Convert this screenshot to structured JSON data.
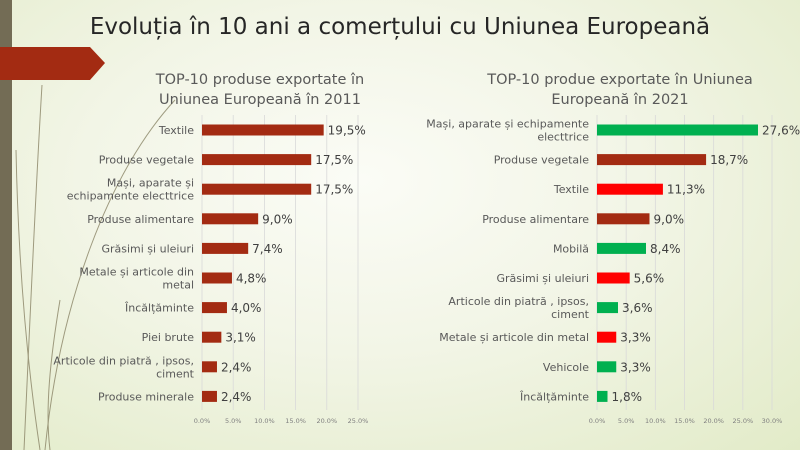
{
  "title": "Evoluția în 10 ani a comerțului cu Uniunea Europeană",
  "colors": {
    "dark_red": "#a32b12",
    "red": "#ff0000",
    "green": "#00b050",
    "sidebar": "#736c55"
  },
  "chart_data": [
    {
      "type": "bar",
      "orientation": "horizontal",
      "title": "TOP-10 produse exportate în Uniunea Europeană în 2011",
      "title_lines": [
        "TOP-10 produse exportate în",
        "Uniunea Europeană în 2011"
      ],
      "categories": [
        [
          "Textile"
        ],
        [
          "Produse vegetale"
        ],
        [
          "Mași, aparate și",
          "echipamente electtrice"
        ],
        [
          "Produse alimentare"
        ],
        [
          "Grăsimi și uleiuri"
        ],
        [
          "Metale și articole din",
          "metal"
        ],
        [
          "Încălțăminte"
        ],
        [
          "Piei brute"
        ],
        [
          "Articole din piatră , ipsos,",
          "ciment"
        ],
        [
          "Produse minerale"
        ]
      ],
      "values": [
        19.5,
        17.5,
        17.5,
        9.0,
        7.4,
        4.8,
        4.0,
        3.1,
        2.4,
        2.4
      ],
      "data_labels": [
        "19,5%",
        "17,5%",
        "17,5%",
        "9,0%",
        "7,4%",
        "4,8%",
        "4,0%",
        "3,1%",
        "2,4%",
        "2,4%"
      ],
      "bar_colors": [
        "dark_red",
        "dark_red",
        "dark_red",
        "dark_red",
        "dark_red",
        "dark_red",
        "dark_red",
        "dark_red",
        "dark_red",
        "dark_red"
      ],
      "xlim": [
        0,
        25
      ],
      "xticks": [
        "0.0%",
        "5.0%",
        "10.0%",
        "15.0%",
        "20.0%",
        "25.0%"
      ],
      "grid": true
    },
    {
      "type": "bar",
      "orientation": "horizontal",
      "title": "TOP-10 produe exportate în Uniunea Europeană în 2021",
      "title_lines": [
        "TOP-10 produe exportate în Uniunea",
        "Europeană în 2021"
      ],
      "categories": [
        [
          "Mași, aparate și echipamente",
          "electtrice"
        ],
        [
          "Produse vegetale"
        ],
        [
          "Textile"
        ],
        [
          "Produse alimentare"
        ],
        [
          "Mobilă"
        ],
        [
          "Grăsimi și uleiuri"
        ],
        [
          "Articole din piatră , ipsos,",
          "ciment"
        ],
        [
          "Metale și articole din metal"
        ],
        [
          "Vehicole"
        ],
        [
          "Încălțăminte"
        ]
      ],
      "values": [
        27.6,
        18.7,
        11.3,
        9.0,
        8.4,
        5.6,
        3.6,
        3.3,
        3.3,
        1.8
      ],
      "data_labels": [
        "27,6%",
        "18,7%",
        "11,3%",
        "9,0%",
        "8,4%",
        "5,6%",
        "3,6%",
        "3,3%",
        "3,3%",
        "1,8%"
      ],
      "bar_colors": [
        "green",
        "dark_red",
        "red",
        "dark_red",
        "green",
        "red",
        "green",
        "red",
        "green",
        "green"
      ],
      "xlim": [
        0,
        30
      ],
      "xticks": [
        "0.0%",
        "5.0%",
        "10.0%",
        "15.0%",
        "20.0%",
        "25.0%",
        "30.0%"
      ],
      "grid": true
    }
  ]
}
